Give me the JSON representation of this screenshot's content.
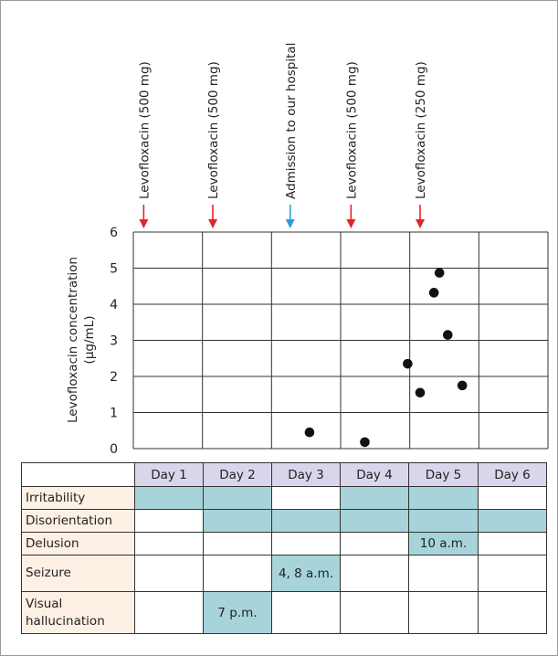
{
  "chart_data": {
    "type": "scatter",
    "ylabel": "Levofloxacin concentration\n(µg/mL)",
    "ylim": [
      0,
      6
    ],
    "yticks": [
      0,
      1,
      2,
      3,
      4,
      5,
      6
    ],
    "days": 6,
    "grid": true,
    "points": [
      {
        "day": 3.55,
        "y": 0.45
      },
      {
        "day": 4.35,
        "y": 0.18
      },
      {
        "day": 4.97,
        "y": 2.35
      },
      {
        "day": 5.15,
        "y": 1.55
      },
      {
        "day": 5.35,
        "y": 4.32
      },
      {
        "day": 5.43,
        "y": 4.87
      },
      {
        "day": 5.55,
        "y": 3.15
      },
      {
        "day": 5.76,
        "y": 1.75
      }
    ],
    "annotations": [
      {
        "text": "Levofloxacin (500 mg)",
        "day": 1.15,
        "color": "#e4242a"
      },
      {
        "text": "Levofloxacin (500 mg)",
        "day": 2.15,
        "color": "#e4242a"
      },
      {
        "text": "Admission to our hospital",
        "day": 3.27,
        "color": "#2b9fd8"
      },
      {
        "text": "Levofloxacin (500 mg)",
        "day": 4.15,
        "color": "#e4242a"
      },
      {
        "text": "Levofloxacin (250 mg)",
        "day": 5.15,
        "color": "#e4242a"
      }
    ]
  },
  "symptom_table": {
    "days": [
      "Day 1",
      "Day 2",
      "Day 3",
      "Day 4",
      "Day 5",
      "Day 6"
    ],
    "rows": [
      {
        "label": "Irritability",
        "cells": [
          {
            "on": true,
            "text": ""
          },
          {
            "on": true,
            "text": ""
          },
          {
            "on": false,
            "text": ""
          },
          {
            "on": true,
            "text": ""
          },
          {
            "on": true,
            "text": ""
          },
          {
            "on": false,
            "text": ""
          }
        ]
      },
      {
        "label": "Disorientation",
        "cells": [
          {
            "on": false,
            "text": ""
          },
          {
            "on": true,
            "text": ""
          },
          {
            "on": true,
            "text": ""
          },
          {
            "on": true,
            "text": ""
          },
          {
            "on": true,
            "text": ""
          },
          {
            "on": true,
            "text": ""
          }
        ]
      },
      {
        "label": "Delusion",
        "cells": [
          {
            "on": false,
            "text": ""
          },
          {
            "on": false,
            "text": ""
          },
          {
            "on": false,
            "text": ""
          },
          {
            "on": false,
            "text": ""
          },
          {
            "on": true,
            "text": "10 a.m."
          },
          {
            "on": false,
            "text": ""
          }
        ]
      },
      {
        "label": "Seizure",
        "cells": [
          {
            "on": false,
            "text": ""
          },
          {
            "on": false,
            "text": ""
          },
          {
            "on": true,
            "text": "4, 8 a.m."
          },
          {
            "on": false,
            "text": ""
          },
          {
            "on": false,
            "text": ""
          },
          {
            "on": false,
            "text": ""
          }
        ]
      },
      {
        "label": "Visual\nhallucination",
        "cells": [
          {
            "on": false,
            "text": ""
          },
          {
            "on": true,
            "text": "7 p.m."
          },
          {
            "on": false,
            "text": ""
          },
          {
            "on": false,
            "text": ""
          },
          {
            "on": false,
            "text": ""
          },
          {
            "on": false,
            "text": ""
          }
        ]
      }
    ]
  },
  "colors": {
    "dose_arrow": "#e4242a",
    "admission_arrow": "#2b9fd8",
    "symptom_on": "#a7d4da",
    "day_header": "#d9d6ec",
    "row_label": "#fdf0e4"
  }
}
